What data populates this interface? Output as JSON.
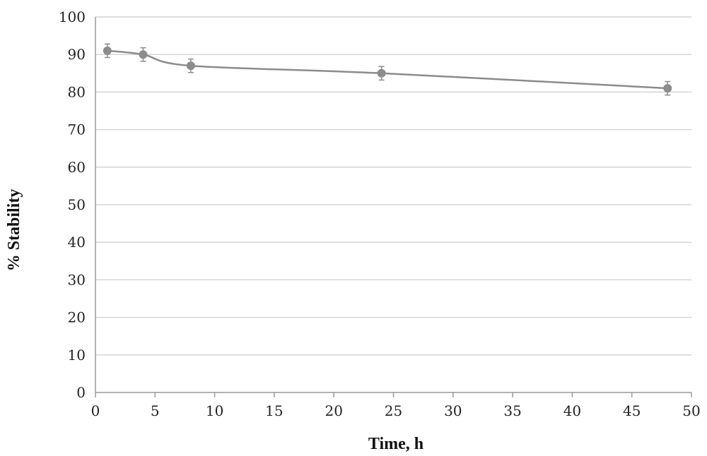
{
  "chart_data": {
    "type": "line",
    "xlabel": "Time, h",
    "ylabel": "% Stability",
    "xlim": [
      0,
      50
    ],
    "ylim": [
      0,
      100
    ],
    "x_ticks": [
      0,
      5,
      10,
      15,
      20,
      25,
      30,
      35,
      40,
      45,
      50
    ],
    "y_ticks": [
      0,
      10,
      20,
      30,
      40,
      50,
      60,
      70,
      80,
      90,
      100
    ],
    "grid": "horizontal",
    "legend": "none",
    "line_style": "smoothed",
    "series": [
      {
        "x": [
          1,
          4,
          8,
          24,
          48
        ],
        "y": [
          91,
          90,
          87,
          85,
          81
        ],
        "error": [
          1.8,
          1.8,
          1.8,
          1.8,
          1.8
        ]
      }
    ],
    "colors": {
      "series": "#8c8c8c",
      "grid": "#d4d4d4",
      "axis": "#9a9a9a"
    }
  }
}
